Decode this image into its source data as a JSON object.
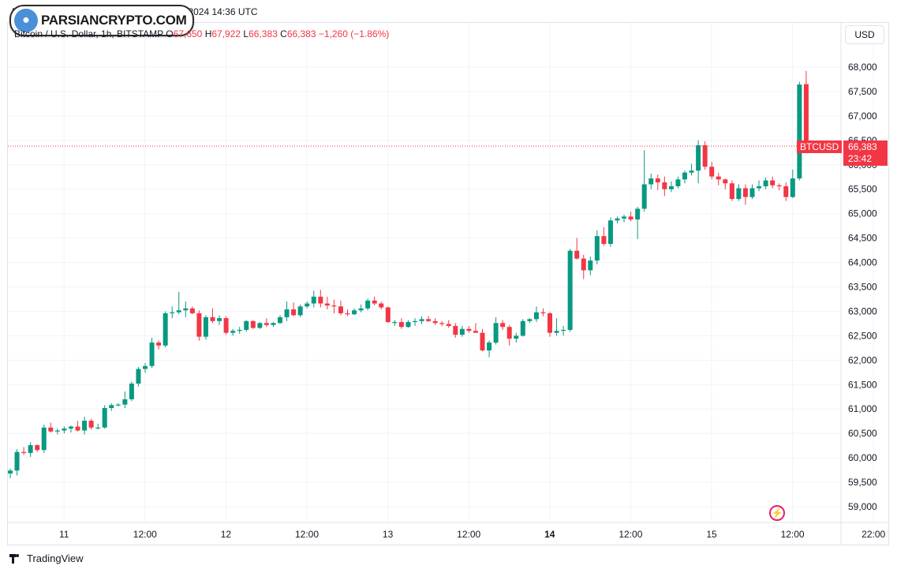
{
  "header": {
    "topline": "Published on ParsianCrypto.com, Oct 15, 2024 14:36 UTC",
    "logo_text": "PARSIANCRYPTO.COM",
    "symbol_desc": "Bitcoin / U.S. Dollar, 1h, BITSTAMP",
    "open_label": "O",
    "open_value": "67,650",
    "high_label": "H",
    "high_value": "67,922",
    "low_label": "L",
    "low_value": "66,383",
    "close_label": "C",
    "close_value": "66,383",
    "change": "−1,260 (−1.86%)",
    "currency": "USD"
  },
  "price_line": {
    "symbol": "BTCUSD",
    "price": "66,383",
    "countdown": "23:42"
  },
  "footer": {
    "brand": "TradingView"
  },
  "colors": {
    "up": "#089981",
    "down": "#f23645",
    "grid": "#f0f3fa",
    "text": "#131722"
  },
  "chart_data": {
    "type": "candlestick",
    "title": "Bitcoin / U.S. Dollar, 1h, BITSTAMP",
    "ylim": [
      58600,
      68400
    ],
    "y_ticks": [
      59000,
      59500,
      60000,
      60500,
      61000,
      61500,
      62000,
      62500,
      63000,
      63500,
      64000,
      64500,
      65000,
      65500,
      66000,
      66500,
      67000,
      67500,
      68000
    ],
    "y_tick_labels": [
      "59,000",
      "59,500",
      "60,000",
      "60,500",
      "61,000",
      "61,500",
      "62,000",
      "62,500",
      "63,000",
      "63,500",
      "64,000",
      "64,500",
      "65,000",
      "65,500",
      "66,000",
      "66,500",
      "67,000",
      "67,500",
      "68,000"
    ],
    "x_ticks": [
      {
        "index": 4,
        "label": "11",
        "bold": false
      },
      {
        "index": 16,
        "label": "12:00",
        "bold": false
      },
      {
        "index": 28,
        "label": "12",
        "bold": false
      },
      {
        "index": 40,
        "label": "12:00",
        "bold": false
      },
      {
        "index": 52,
        "label": "13",
        "bold": false
      },
      {
        "index": 64,
        "label": "12:00",
        "bold": false
      },
      {
        "index": 76,
        "label": "14",
        "bold": true
      },
      {
        "index": 88,
        "label": "12:00",
        "bold": false
      },
      {
        "index": 100,
        "label": "15",
        "bold": false
      },
      {
        "index": 112,
        "label": "12:00",
        "bold": false
      },
      {
        "index": 124,
        "label": "22:00",
        "bold": false
      }
    ],
    "last_price": 66383,
    "ohlc": [
      [
        59680,
        59780,
        59580,
        59740
      ],
      [
        59740,
        60180,
        59640,
        60120
      ],
      [
        60120,
        60220,
        60060,
        60100
      ],
      [
        60100,
        60320,
        60020,
        60260
      ],
      [
        60260,
        60280,
        60120,
        60160
      ],
      [
        60160,
        60680,
        60100,
        60620
      ],
      [
        60620,
        60720,
        60520,
        60540
      ],
      [
        60540,
        60600,
        60480,
        60560
      ],
      [
        60560,
        60640,
        60500,
        60600
      ],
      [
        60600,
        60660,
        60520,
        60640
      ],
      [
        60640,
        60760,
        60540,
        60560
      ],
      [
        60560,
        60840,
        60480,
        60760
      ],
      [
        60760,
        60800,
        60580,
        60620
      ],
      [
        60620,
        60700,
        60580,
        60620
      ],
      [
        60620,
        61080,
        60600,
        61020
      ],
      [
        61020,
        61120,
        60960,
        61080
      ],
      [
        61080,
        61120,
        61060,
        61090
      ],
      [
        61090,
        61360,
        61020,
        61200
      ],
      [
        61200,
        61560,
        61160,
        61520
      ],
      [
        61520,
        61860,
        61460,
        61820
      ],
      [
        61820,
        61940,
        61740,
        61880
      ],
      [
        61880,
        62460,
        61840,
        62360
      ],
      [
        62360,
        62400,
        62220,
        62300
      ],
      [
        62300,
        63000,
        62260,
        62960
      ],
      [
        62960,
        63100,
        62860,
        62980
      ],
      [
        62980,
        63400,
        62940,
        63020
      ],
      [
        63020,
        63200,
        62880,
        63060
      ],
      [
        63060,
        63100,
        62940,
        62960
      ],
      [
        62960,
        63020,
        62400,
        62480
      ],
      [
        62480,
        62920,
        62420,
        62880
      ],
      [
        62880,
        63060,
        62760,
        62800
      ],
      [
        62800,
        62920,
        62720,
        62860
      ],
      [
        62860,
        62900,
        62520,
        62560
      ],
      [
        62560,
        62640,
        62500,
        62600
      ],
      [
        62600,
        62680,
        62540,
        62620
      ],
      [
        62620,
        62820,
        62580,
        62800
      ],
      [
        62800,
        62820,
        62640,
        62660
      ],
      [
        62660,
        62780,
        62640,
        62760
      ],
      [
        62760,
        62860,
        62680,
        62720
      ],
      [
        62720,
        62780,
        62680,
        62760
      ],
      [
        62760,
        62920,
        62740,
        62880
      ],
      [
        62880,
        63200,
        62800,
        63040
      ],
      [
        63040,
        63180,
        62900,
        62920
      ],
      [
        62920,
        63140,
        62880,
        63100
      ],
      [
        63100,
        63200,
        63060,
        63160
      ],
      [
        63160,
        63420,
        63080,
        63300
      ],
      [
        63300,
        63440,
        63080,
        63160
      ],
      [
        63160,
        63300,
        63040,
        63120
      ],
      [
        63120,
        63240,
        62960,
        63100
      ],
      [
        63100,
        63220,
        62920,
        62960
      ],
      [
        62960,
        63040,
        62900,
        62940
      ],
      [
        62940,
        63060,
        62920,
        63020
      ],
      [
        63020,
        63140,
        62980,
        63060
      ],
      [
        63060,
        63260,
        63020,
        63220
      ],
      [
        63220,
        63300,
        63120,
        63160
      ],
      [
        63160,
        63200,
        63040,
        63080
      ],
      [
        63080,
        63100,
        62760,
        62780
      ],
      [
        62780,
        62820,
        62700,
        62780
      ],
      [
        62780,
        62860,
        62640,
        62680
      ],
      [
        62680,
        62820,
        62660,
        62780
      ],
      [
        62780,
        62860,
        62700,
        62800
      ],
      [
        62800,
        62900,
        62740,
        62840
      ],
      [
        62840,
        62900,
        62780,
        62800
      ],
      [
        62800,
        62860,
        62720,
        62760
      ],
      [
        62760,
        62800,
        62700,
        62740
      ],
      [
        62740,
        62820,
        62660,
        62700
      ],
      [
        62700,
        62760,
        62460,
        62520
      ],
      [
        62520,
        62700,
        62480,
        62640
      ],
      [
        62640,
        62700,
        62560,
        62600
      ],
      [
        62600,
        62760,
        62560,
        62560
      ],
      [
        62560,
        62640,
        62180,
        62200
      ],
      [
        62200,
        62400,
        62060,
        62360
      ],
      [
        62360,
        62880,
        62320,
        62760
      ],
      [
        62760,
        62820,
        62620,
        62680
      ],
      [
        62680,
        62720,
        62300,
        62440
      ],
      [
        62440,
        62560,
        62360,
        62500
      ],
      [
        62500,
        62840,
        62480,
        62800
      ],
      [
        62800,
        62860,
        62760,
        62840
      ],
      [
        62840,
        63100,
        62780,
        62980
      ],
      [
        62980,
        63060,
        62900,
        62960
      ],
      [
        62960,
        62980,
        62480,
        62560
      ],
      [
        62560,
        62860,
        62500,
        62600
      ],
      [
        62600,
        62700,
        62500,
        62620
      ],
      [
        62620,
        64280,
        62580,
        64240
      ],
      [
        64240,
        64500,
        64060,
        64080
      ],
      [
        64080,
        64160,
        63660,
        63840
      ],
      [
        63840,
        64120,
        63740,
        64040
      ],
      [
        64040,
        64660,
        63960,
        64540
      ],
      [
        64540,
        64720,
        64340,
        64380
      ],
      [
        64380,
        64920,
        64320,
        64860
      ],
      [
        64860,
        64940,
        64800,
        64900
      ],
      [
        64900,
        64980,
        64820,
        64940
      ],
      [
        64940,
        65040,
        64840,
        64880
      ],
      [
        64880,
        65140,
        64480,
        65100
      ],
      [
        65100,
        66300,
        65040,
        65600
      ],
      [
        65600,
        65820,
        65500,
        65720
      ],
      [
        65720,
        65800,
        65480,
        65640
      ],
      [
        65640,
        65760,
        65360,
        65500
      ],
      [
        65500,
        65660,
        65440,
        65560
      ],
      [
        65560,
        65760,
        65520,
        65700
      ],
      [
        65700,
        65880,
        65620,
        65840
      ],
      [
        65840,
        66020,
        65780,
        65880
      ],
      [
        65880,
        66500,
        65620,
        66400
      ],
      [
        66400,
        66480,
        65900,
        65960
      ],
      [
        65960,
        66060,
        65700,
        65760
      ],
      [
        65760,
        65840,
        65580,
        65700
      ],
      [
        65700,
        65720,
        65500,
        65620
      ],
      [
        65620,
        65680,
        65260,
        65300
      ],
      [
        65300,
        65600,
        65260,
        65520
      ],
      [
        65520,
        65600,
        65180,
        65340
      ],
      [
        65340,
        65600,
        65300,
        65520
      ],
      [
        65520,
        65680,
        65460,
        65560
      ],
      [
        65560,
        65740,
        65500,
        65680
      ],
      [
        65680,
        65760,
        65520,
        65580
      ],
      [
        65580,
        65620,
        65480,
        65560
      ],
      [
        65560,
        65640,
        65260,
        65340
      ],
      [
        65340,
        65900,
        65320,
        65720
      ],
      [
        65720,
        67700,
        65680,
        67643
      ],
      [
        67650,
        67922,
        66383,
        66383
      ]
    ]
  }
}
